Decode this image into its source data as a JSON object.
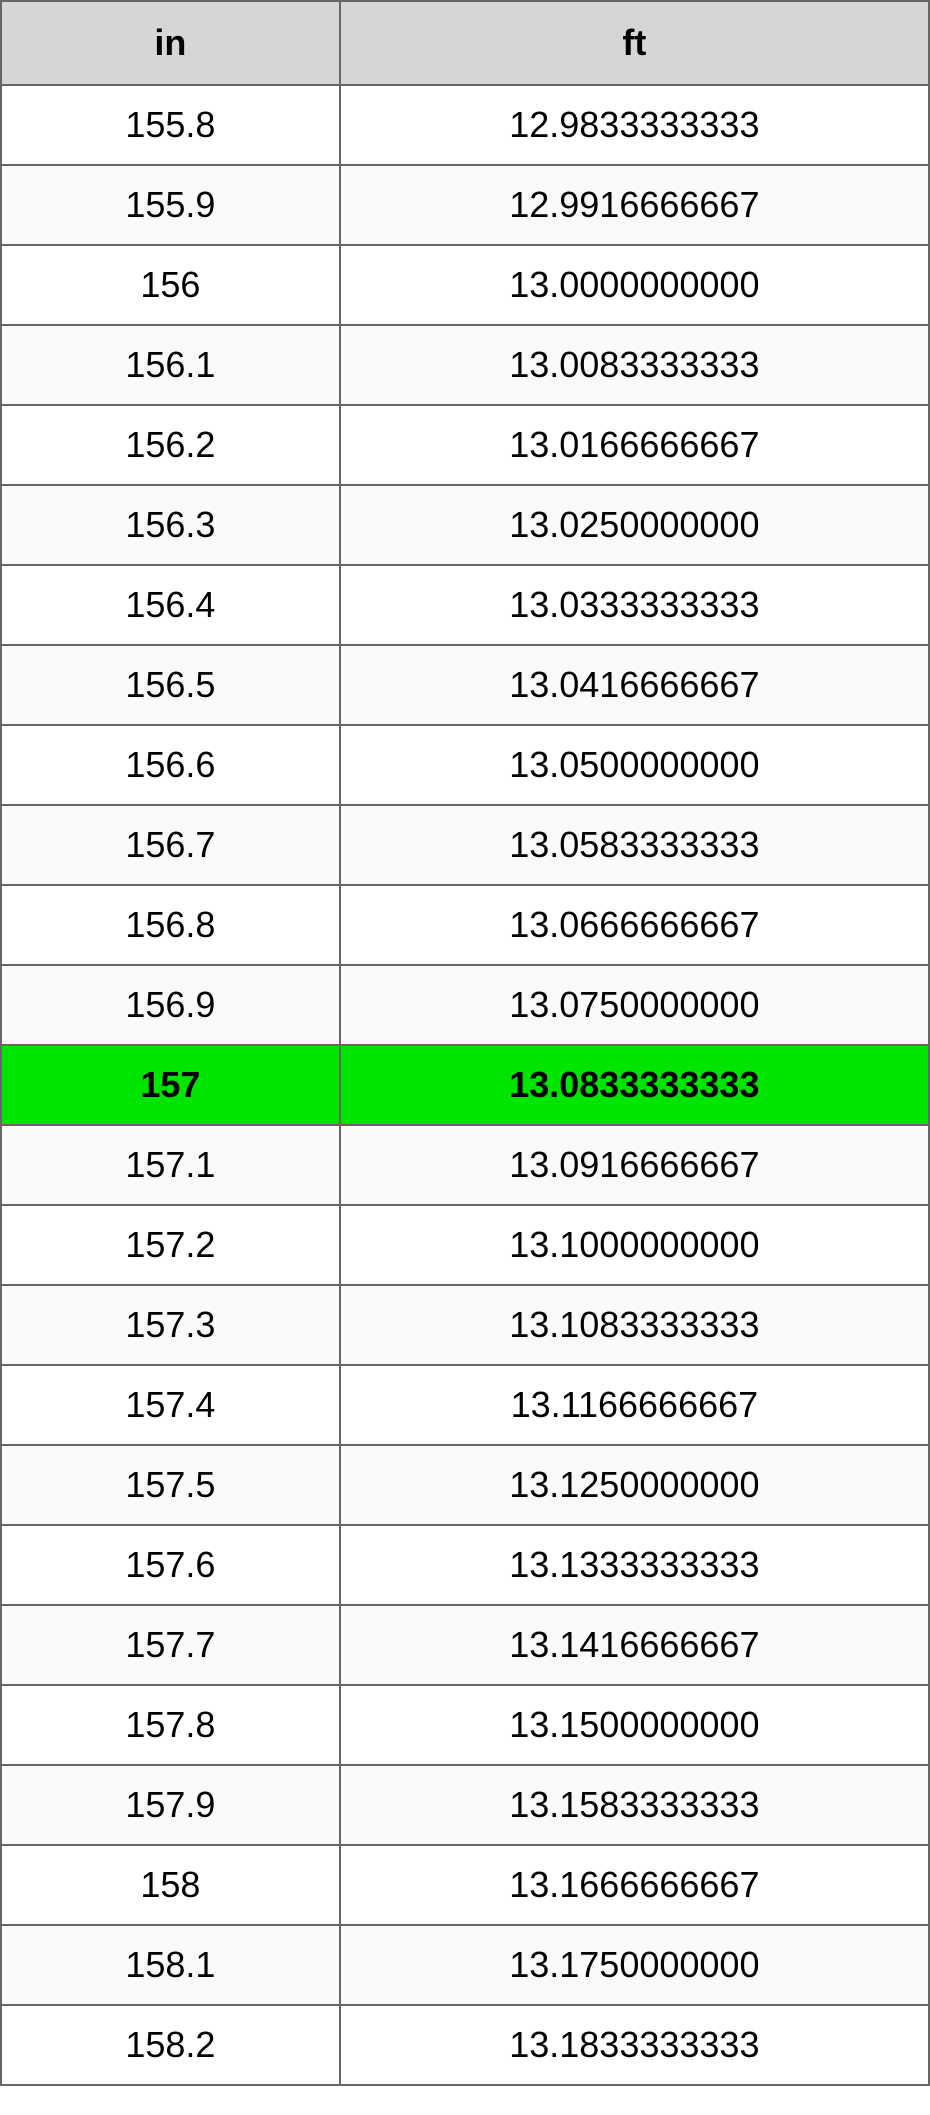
{
  "table": {
    "columns": [
      {
        "label": "in",
        "class": "col-in"
      },
      {
        "label": "ft",
        "class": "col-ft"
      }
    ],
    "highlight_index": 12,
    "highlight_color": "#00e500",
    "header_bg": "#d6d6d6",
    "border_color": "#666666",
    "even_row_bg": "#fafafa",
    "odd_row_bg": "#ffffff",
    "font_size": 36,
    "rows": [
      {
        "in": "155.8",
        "ft": "12.9833333333"
      },
      {
        "in": "155.9",
        "ft": "12.9916666667"
      },
      {
        "in": "156",
        "ft": "13.0000000000"
      },
      {
        "in": "156.1",
        "ft": "13.0083333333"
      },
      {
        "in": "156.2",
        "ft": "13.0166666667"
      },
      {
        "in": "156.3",
        "ft": "13.0250000000"
      },
      {
        "in": "156.4",
        "ft": "13.0333333333"
      },
      {
        "in": "156.5",
        "ft": "13.0416666667"
      },
      {
        "in": "156.6",
        "ft": "13.0500000000"
      },
      {
        "in": "156.7",
        "ft": "13.0583333333"
      },
      {
        "in": "156.8",
        "ft": "13.0666666667"
      },
      {
        "in": "156.9",
        "ft": "13.0750000000"
      },
      {
        "in": "157",
        "ft": "13.0833333333"
      },
      {
        "in": "157.1",
        "ft": "13.0916666667"
      },
      {
        "in": "157.2",
        "ft": "13.1000000000"
      },
      {
        "in": "157.3",
        "ft": "13.1083333333"
      },
      {
        "in": "157.4",
        "ft": "13.1166666667"
      },
      {
        "in": "157.5",
        "ft": "13.1250000000"
      },
      {
        "in": "157.6",
        "ft": "13.1333333333"
      },
      {
        "in": "157.7",
        "ft": "13.1416666667"
      },
      {
        "in": "157.8",
        "ft": "13.1500000000"
      },
      {
        "in": "157.9",
        "ft": "13.1583333333"
      },
      {
        "in": "158",
        "ft": "13.1666666667"
      },
      {
        "in": "158.1",
        "ft": "13.1750000000"
      },
      {
        "in": "158.2",
        "ft": "13.1833333333"
      }
    ]
  }
}
